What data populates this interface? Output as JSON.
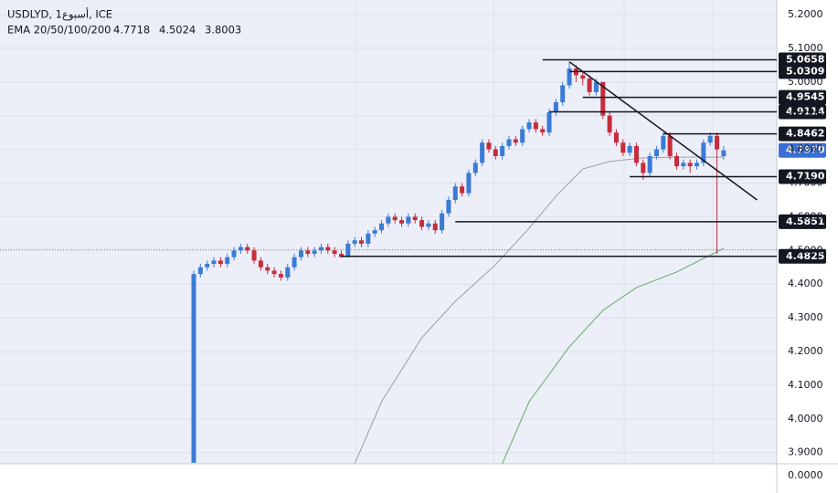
{
  "chart_data": {
    "type": "candlestick",
    "title": "USDLYD, 1أسبوع, ICE",
    "indicator_label": "EMA 20/50/100/200",
    "indicator_values": [
      {
        "value": 4.7718,
        "label": "4.7718",
        "color": "#131722"
      },
      {
        "value": 4.5024,
        "label": "4.5024",
        "color": "#2e7d32"
      },
      {
        "value": 3.8003,
        "label": "3.8003",
        "color": "#b71c1c"
      }
    ],
    "up_color": "#3a7bd5",
    "down_color": "#c62d3c",
    "candles": [
      [
        3.87,
        4.44,
        3.87,
        4.43
      ],
      [
        4.43,
        4.46,
        4.42,
        4.45
      ],
      [
        4.45,
        4.47,
        4.44,
        4.46
      ],
      [
        4.46,
        4.48,
        4.45,
        4.47
      ],
      [
        4.47,
        4.48,
        4.45,
        4.46
      ],
      [
        4.46,
        4.49,
        4.45,
        4.48
      ],
      [
        4.48,
        4.51,
        4.47,
        4.5
      ],
      [
        4.5,
        4.52,
        4.49,
        4.51
      ],
      [
        4.51,
        4.52,
        4.49,
        4.5
      ],
      [
        4.5,
        4.51,
        4.46,
        4.47
      ],
      [
        4.47,
        4.48,
        4.44,
        4.45
      ],
      [
        4.45,
        4.46,
        4.43,
        4.44
      ],
      [
        4.44,
        4.45,
        4.42,
        4.43
      ],
      [
        4.43,
        4.44,
        4.41,
        4.42
      ],
      [
        4.42,
        4.46,
        4.41,
        4.45
      ],
      [
        4.45,
        4.49,
        4.44,
        4.48
      ],
      [
        4.48,
        4.51,
        4.47,
        4.5
      ],
      [
        4.5,
        4.51,
        4.48,
        4.49
      ],
      [
        4.49,
        4.51,
        4.48,
        4.5
      ],
      [
        4.5,
        4.52,
        4.49,
        4.51
      ],
      [
        4.51,
        4.52,
        4.49,
        4.5
      ],
      [
        4.5,
        4.51,
        4.48,
        4.49
      ],
      [
        4.49,
        4.5,
        4.48,
        4.48
      ],
      [
        4.48,
        4.53,
        4.48,
        4.52
      ],
      [
        4.52,
        4.54,
        4.51,
        4.53
      ],
      [
        4.53,
        4.54,
        4.51,
        4.52
      ],
      [
        4.52,
        4.56,
        4.51,
        4.55
      ],
      [
        4.55,
        4.57,
        4.54,
        4.56
      ],
      [
        4.56,
        4.59,
        4.55,
        4.58
      ],
      [
        4.58,
        4.61,
        4.57,
        4.6
      ],
      [
        4.6,
        4.61,
        4.58,
        4.59
      ],
      [
        4.59,
        4.6,
        4.57,
        4.58
      ],
      [
        4.58,
        4.61,
        4.57,
        4.6
      ],
      [
        4.6,
        4.61,
        4.58,
        4.59
      ],
      [
        4.59,
        4.6,
        4.56,
        4.57
      ],
      [
        4.57,
        4.59,
        4.56,
        4.58
      ],
      [
        4.58,
        4.59,
        4.55,
        4.56
      ],
      [
        4.56,
        4.62,
        4.55,
        4.61
      ],
      [
        4.61,
        4.66,
        4.6,
        4.65
      ],
      [
        4.65,
        4.7,
        4.64,
        4.69
      ],
      [
        4.69,
        4.7,
        4.66,
        4.67
      ],
      [
        4.67,
        4.74,
        4.66,
        4.73
      ],
      [
        4.73,
        4.77,
        4.72,
        4.76
      ],
      [
        4.76,
        4.83,
        4.75,
        4.82
      ],
      [
        4.82,
        4.83,
        4.79,
        4.8
      ],
      [
        4.8,
        4.81,
        4.77,
        4.78
      ],
      [
        4.78,
        4.82,
        4.77,
        4.81
      ],
      [
        4.81,
        4.84,
        4.8,
        4.83
      ],
      [
        4.83,
        4.84,
        4.81,
        4.82
      ],
      [
        4.82,
        4.87,
        4.81,
        4.86
      ],
      [
        4.86,
        4.89,
        4.85,
        4.88
      ],
      [
        4.88,
        4.89,
        4.85,
        4.86
      ],
      [
        4.86,
        4.87,
        4.84,
        4.85
      ],
      [
        4.85,
        4.92,
        4.84,
        4.91
      ],
      [
        4.91,
        4.95,
        4.9,
        4.94
      ],
      [
        4.94,
        5.0,
        4.93,
        4.99
      ],
      [
        4.99,
        5.06,
        4.98,
        5.04
      ],
      [
        5.04,
        5.05,
        5.0,
        5.02
      ],
      [
        5.02,
        5.03,
        4.99,
        5.01
      ],
      [
        5.01,
        5.02,
        4.96,
        4.97
      ],
      [
        4.97,
        5.01,
        4.96,
        5.0
      ],
      [
        5.0,
        5.0,
        4.89,
        4.9
      ],
      [
        4.9,
        4.91,
        4.84,
        4.85
      ],
      [
        4.85,
        4.86,
        4.81,
        4.82
      ],
      [
        4.82,
        4.83,
        4.78,
        4.79
      ],
      [
        4.79,
        4.82,
        4.78,
        4.81
      ],
      [
        4.81,
        4.82,
        4.75,
        4.76
      ],
      [
        4.76,
        4.77,
        4.71,
        4.73
      ],
      [
        4.73,
        4.79,
        4.72,
        4.78
      ],
      [
        4.78,
        4.81,
        4.77,
        4.8
      ],
      [
        4.8,
        4.85,
        4.79,
        4.84
      ],
      [
        4.84,
        4.85,
        4.77,
        4.78
      ],
      [
        4.78,
        4.79,
        4.74,
        4.75
      ],
      [
        4.75,
        4.77,
        4.74,
        4.76
      ],
      [
        4.76,
        4.77,
        4.73,
        4.75
      ],
      [
        4.75,
        4.77,
        4.74,
        4.76
      ],
      [
        4.76,
        4.83,
        4.75,
        4.82
      ],
      [
        4.82,
        4.85,
        4.81,
        4.84
      ],
      [
        4.84,
        4.85,
        4.49,
        4.8
      ],
      [
        4.78,
        4.81,
        4.77,
        4.797
      ]
    ],
    "last_price_label": "4.7970",
    "last_price_color": "#3a6fd8",
    "series": [
      {
        "color": "#9e9e9e",
        "x": [
          24,
          28,
          34,
          39,
          45,
          50,
          54,
          58,
          62,
          67,
          72,
          79
        ],
        "values": [
          3.867,
          4.051,
          4.241,
          4.349,
          4.458,
          4.566,
          4.661,
          4.742,
          4.764,
          4.775,
          4.777,
          4.777
        ]
      },
      {
        "color": "#66aa66",
        "x": [
          46,
          50,
          56,
          61,
          66,
          72,
          79
        ],
        "values": [
          3.867,
          4.051,
          4.214,
          4.322,
          4.39,
          4.436,
          4.506
        ]
      }
    ],
    "levels": [
      {
        "value": 5.0658,
        "label": "5.0658",
        "from": 52
      },
      {
        "value": 5.0309,
        "label": "5.0309",
        "from": 56
      },
      {
        "value": 4.9545,
        "label": "4.9545",
        "from": 58
      },
      {
        "value": 4.9114,
        "label": "4.9114",
        "from": 53
      },
      {
        "value": 4.8462,
        "label": "4.8462",
        "from": 70
      },
      {
        "value": 4.719,
        "label": "4.7190",
        "from": 65
      },
      {
        "value": 4.5851,
        "label": "4.5851",
        "from": 39
      },
      {
        "value": 4.4825,
        "label": "4.4825",
        "from": 22
      }
    ],
    "trendline": [
      [
        56,
        5.06
      ],
      [
        84,
        4.65
      ]
    ],
    "ylim": [
      3.8667,
      5.2434
    ],
    "yticks": [
      {
        "value": 5.2,
        "label": "5.2000"
      },
      {
        "value": 5.1,
        "label": "5.1000"
      },
      {
        "value": 5.0,
        "label": "5.0000"
      },
      {
        "value": 4.9,
        "label": "4.9000"
      },
      {
        "value": 4.8,
        "label": "4.8000"
      },
      {
        "value": 4.7,
        "label": "4.7000"
      },
      {
        "value": 4.6,
        "label": "4.6000"
      },
      {
        "value": 4.5,
        "label": "4.5000"
      },
      {
        "value": 4.4,
        "label": "4.4000"
      },
      {
        "value": 4.3,
        "label": "4.3000"
      },
      {
        "value": 4.2,
        "label": "4.2000"
      },
      {
        "value": 4.1,
        "label": "4.1000"
      },
      {
        "value": 4.0,
        "label": "4.0000"
      },
      {
        "value": 3.9,
        "label": "3.9000"
      }
    ],
    "axis_break_label": "0.0000",
    "grid": true
  }
}
